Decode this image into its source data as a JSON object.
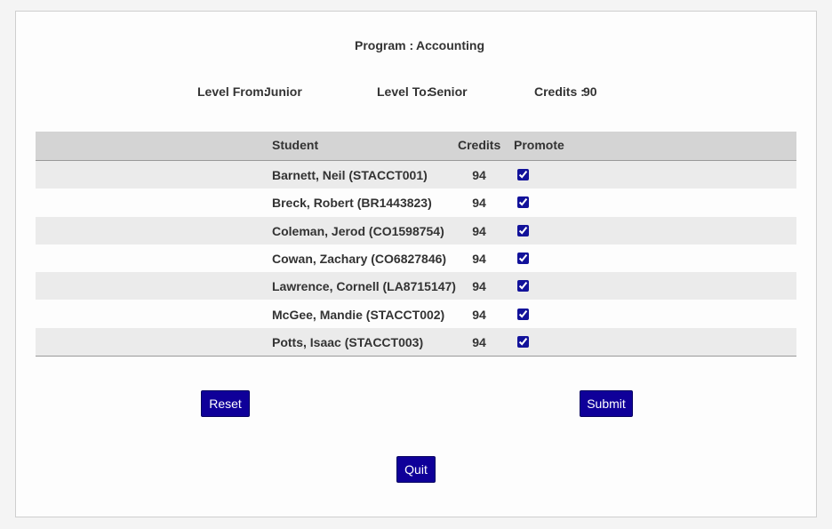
{
  "header": {
    "program_label": "Program :",
    "program": "Accounting",
    "fields": [
      {
        "label": "Level From:",
        "value": "Junior"
      },
      {
        "label": "Level To:",
        "value": "Senior"
      },
      {
        "label": "Credits :",
        "value": 90
      }
    ]
  },
  "table": {
    "columns": [
      "Student",
      "Credits",
      "Promote"
    ],
    "rows": [
      {
        "student": "Barnett, Neil (STACCT001)",
        "credits": 94,
        "promote": true
      },
      {
        "student": "Breck, Robert (BR1443823)",
        "credits": 94,
        "promote": true
      },
      {
        "student": "Coleman, Jerod (CO1598754)",
        "credits": 94,
        "promote": true
      },
      {
        "student": "Cowan, Zachary (CO6827846)",
        "credits": 94,
        "promote": true
      },
      {
        "student": "Lawrence, Cornell (LA8715147)",
        "credits": 94,
        "promote": true
      },
      {
        "student": "McGee, Mandie (STACCT002)",
        "credits": 94,
        "promote": true
      },
      {
        "student": "Potts, Isaac (STACCT003)",
        "credits": 94,
        "promote": true
      }
    ]
  },
  "buttons": {
    "reset": "Reset",
    "submit": "Submit",
    "quit": "Quit"
  }
}
